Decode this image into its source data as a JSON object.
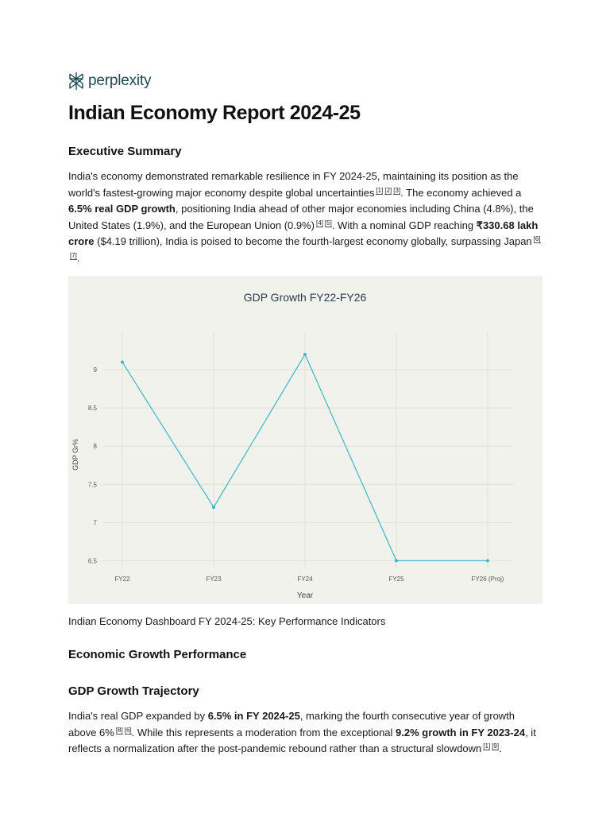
{
  "brand": {
    "name": "perplexity",
    "logo_icon": "perplexity-logo-icon"
  },
  "title": "Indian Economy Report 2024-25",
  "sections": {
    "executive_summary": {
      "heading": "Executive Summary",
      "p1_a": "India's economy demonstrated remarkable resilience in FY 2024-25, maintaining its position as the world's fastest-growing major economy despite global uncertainties",
      "c1": "[1]",
      "c2": "[2]",
      "c3": "[3]",
      "p1_b": ". The economy achieved a ",
      "p1_bold1": "6.5% real GDP growth",
      "p1_c": ", positioning India ahead of other major economies including China (4.8%), the United States (1.9%), and the European Union (0.9%)",
      "c4": "[4]",
      "c5": "[5]",
      "p1_d": ". With a nominal GDP reaching ",
      "p1_bold2": "₹330.68 lakh crore",
      "p1_e": " ($4.19 trillion), India is poised to become the fourth-largest economy globally, surpassing Japan",
      "c6": "[6]",
      "c7": "[7]",
      "p1_f": "."
    },
    "economic_growth": {
      "heading": "Economic Growth Performance"
    },
    "gdp_trajectory": {
      "heading": "GDP Growth Trajectory",
      "p_a": "India's real GDP expanded by ",
      "p_bold1": "6.5% in FY 2024-25",
      "p_b": ", marking the fourth consecutive year of growth above 6%",
      "c8": "[8]",
      "c6": "[6]",
      "p_c": ". While this represents a moderation from the exceptional ",
      "p_bold2": "9.2% growth in FY 2023-24",
      "p_d": ", it reflects a normalization after the post-pandemic rebound rather than a structural slowdown",
      "c1": "[1]",
      "c9": "[9]",
      "p_e": "."
    }
  },
  "chart_caption": "Indian Economy Dashboard FY 2024-25: Key Performance Indicators",
  "chart_data": {
    "type": "line",
    "title": "GDP Growth FY22-FY26",
    "xlabel": "Year",
    "ylabel": "GDP Gr%",
    "categories": [
      "FY22",
      "FY23",
      "FY24",
      "FY25",
      "FY26 (Proj)"
    ],
    "series": [
      {
        "values": [
          9.1,
          7.2,
          9.2,
          6.5,
          6.5
        ]
      }
    ],
    "ylim": [
      6.4,
      9.5
    ],
    "yticks": [
      6.5,
      7,
      7.5,
      8,
      8.5,
      9
    ],
    "ytick_labels": [
      "6.5",
      "7",
      "7.5",
      "8",
      "8.5",
      "9"
    ],
    "grid": true,
    "colors": {
      "line": "#3cb6c9",
      "background": "#f2f2ec",
      "grid": "#e0e0d8"
    }
  }
}
